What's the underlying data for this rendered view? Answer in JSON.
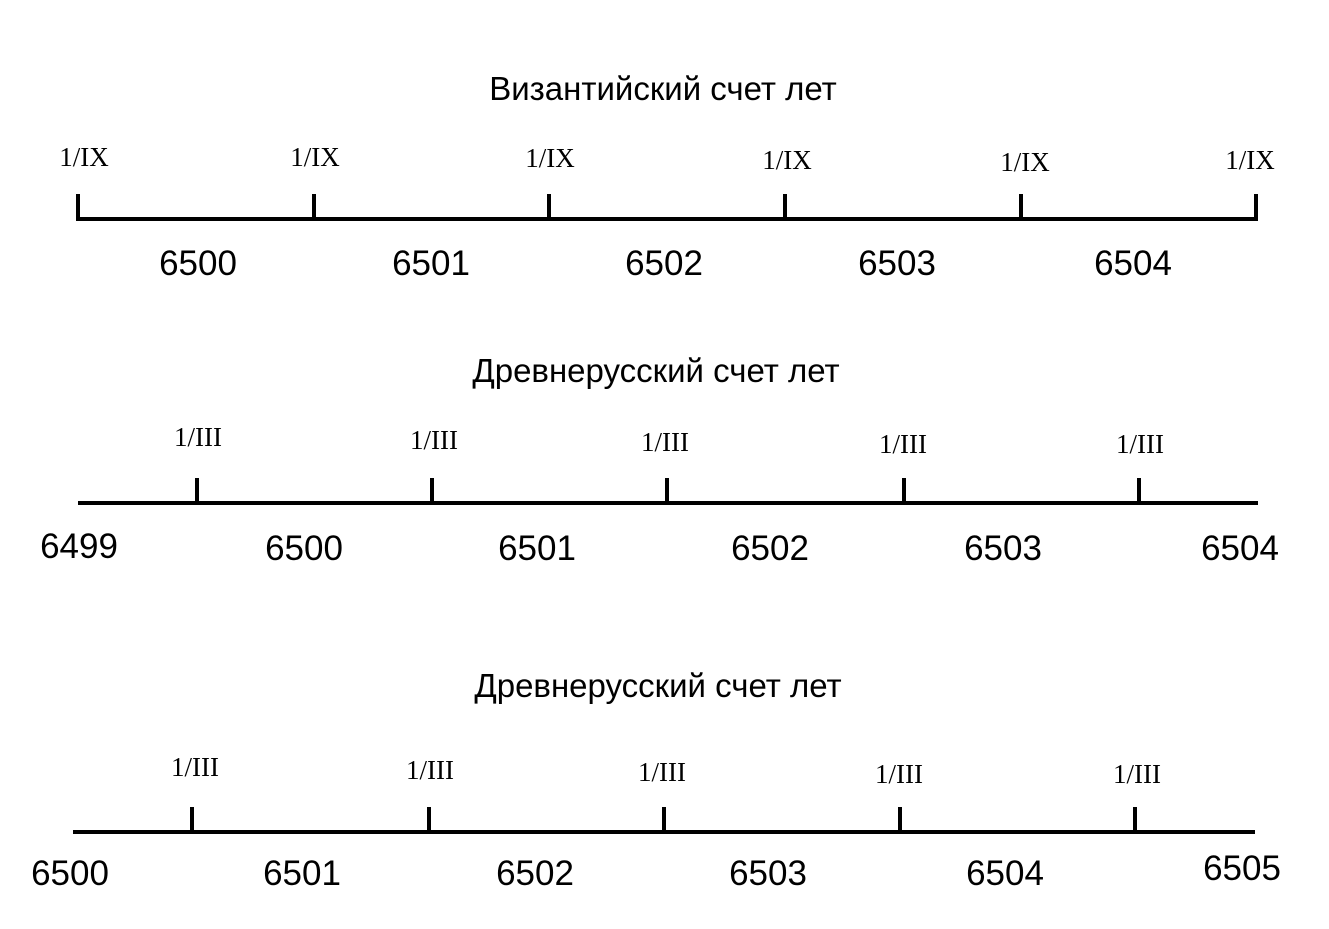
{
  "timelines": [
    {
      "title": "Византийский счет лет",
      "tick_labels": [
        "1/IX",
        "1/IX",
        "1/IX",
        "1/IX",
        "1/IX",
        "1/IX"
      ],
      "year_labels": [
        "6500",
        "6501",
        "6502",
        "6503",
        "6504"
      ]
    },
    {
      "title": "Древнерусский счет лет",
      "tick_labels": [
        "1/III",
        "1/III",
        "1/III",
        "1/III",
        "1/III"
      ],
      "year_labels": [
        "6499",
        "6500",
        "6501",
        "6502",
        "6503",
        "6504"
      ]
    },
    {
      "title": "Древнерусский счет лет",
      "tick_labels": [
        "1/III",
        "1/III",
        "1/III",
        "1/III",
        "1/III"
      ],
      "year_labels": [
        "6500",
        "6501",
        "6502",
        "6503",
        "6504",
        "6505"
      ]
    }
  ]
}
